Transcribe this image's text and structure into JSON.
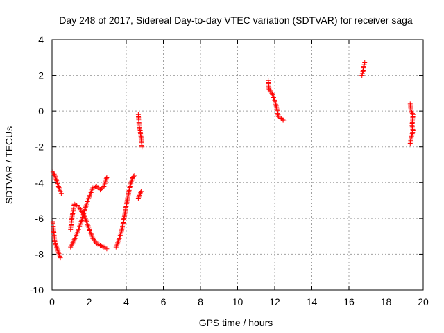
{
  "chart_data": {
    "type": "scatter",
    "title": "Day 248 of 2017, Sidereal Day-to-day VTEC variation (SDTVAR) for receiver saga",
    "xlabel": "GPS time / hours",
    "ylabel": "SDTVAR / TECUs",
    "xlim": [
      0,
      20
    ],
    "ylim": [
      -10,
      4
    ],
    "xticks": [
      0,
      2,
      4,
      6,
      8,
      10,
      12,
      14,
      16,
      18,
      20
    ],
    "yticks": [
      -10,
      -8,
      -6,
      -4,
      -2,
      0,
      2,
      4
    ],
    "grid": true,
    "marker": "+",
    "series": [
      {
        "name": "SDTVAR",
        "color": "#ff0000",
        "segments": [
          [
            [
              0.05,
              -3.4
            ],
            [
              0.15,
              -3.6
            ],
            [
              0.25,
              -3.9
            ],
            [
              0.35,
              -4.2
            ],
            [
              0.45,
              -4.5
            ],
            [
              0.5,
              -4.6
            ]
          ],
          [
            [
              0.05,
              -6.2
            ],
            [
              0.1,
              -6.8
            ],
            [
              0.15,
              -7.3
            ],
            [
              0.25,
              -7.6
            ],
            [
              0.35,
              -7.9
            ],
            [
              0.45,
              -8.2
            ]
          ],
          [
            [
              1.0,
              -7.6
            ],
            [
              1.2,
              -7.2
            ],
            [
              1.4,
              -6.7
            ],
            [
              1.6,
              -6.1
            ],
            [
              1.8,
              -5.4
            ],
            [
              2.0,
              -4.8
            ],
            [
              2.2,
              -4.3
            ],
            [
              2.4,
              -4.2
            ],
            [
              2.6,
              -4.4
            ],
            [
              2.8,
              -4.2
            ],
            [
              2.95,
              -3.7
            ]
          ],
          [
            [
              1.0,
              -6.6
            ],
            [
              1.1,
              -5.8
            ],
            [
              1.2,
              -5.2
            ],
            [
              1.4,
              -5.3
            ],
            [
              1.6,
              -5.6
            ],
            [
              1.8,
              -6.0
            ],
            [
              2.0,
              -6.6
            ],
            [
              2.2,
              -7.1
            ],
            [
              2.4,
              -7.4
            ],
            [
              2.6,
              -7.5
            ],
            [
              2.8,
              -7.6
            ],
            [
              2.95,
              -7.7
            ]
          ],
          [
            [
              3.45,
              -7.6
            ],
            [
              3.6,
              -7.2
            ],
            [
              3.75,
              -6.7
            ],
            [
              3.9,
              -5.9
            ],
            [
              4.05,
              -5.0
            ],
            [
              4.2,
              -4.2
            ],
            [
              4.35,
              -3.7
            ],
            [
              4.45,
              -3.6
            ]
          ],
          [
            [
              4.65,
              -0.2
            ],
            [
              4.7,
              -0.9
            ],
            [
              4.75,
              -1.1
            ],
            [
              4.8,
              -1.5
            ],
            [
              4.85,
              -2.0
            ]
          ],
          [
            [
              4.65,
              -4.9
            ],
            [
              4.7,
              -4.7
            ],
            [
              4.8,
              -4.5
            ]
          ],
          [
            [
              11.65,
              1.7
            ],
            [
              11.7,
              1.2
            ],
            [
              11.85,
              1.0
            ],
            [
              12.0,
              0.6
            ],
            [
              12.1,
              0.2
            ],
            [
              12.2,
              -0.3
            ],
            [
              12.35,
              -0.4
            ],
            [
              12.5,
              -0.55
            ]
          ],
          [
            [
              16.7,
              2.0
            ],
            [
              16.75,
              2.2
            ],
            [
              16.8,
              2.5
            ],
            [
              16.85,
              2.7
            ]
          ],
          [
            [
              19.3,
              0.4
            ],
            [
              19.35,
              0.0
            ],
            [
              19.45,
              -0.2
            ],
            [
              19.4,
              -0.8
            ],
            [
              19.45,
              -1.1
            ],
            [
              19.35,
              -1.5
            ],
            [
              19.3,
              -1.8
            ]
          ]
        ]
      }
    ]
  }
}
